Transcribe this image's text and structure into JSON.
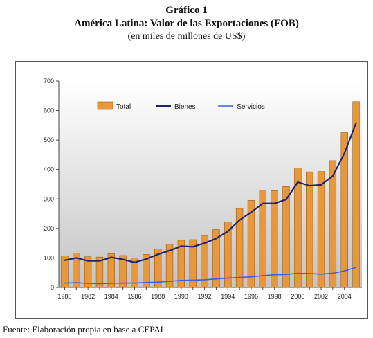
{
  "header": {
    "line1": "Gráfico 1",
    "line2": "América Latina: Valor de las Exportaciones (FOB)",
    "line3": "(en miles de millones de US$)"
  },
  "footer": {
    "source": "Fuente: Elaboración propia en base a CEPAL"
  },
  "colors": {
    "bar_fill": "#e8983c",
    "bar_stroke": "#9a5a14",
    "bienes_line": "#22226e",
    "servicios_line": "#3a5ee6",
    "plot_bg_top": "#ffffff",
    "plot_bg_bottom": "#c4c4c4"
  },
  "chart_data": {
    "type": "bar",
    "title": "",
    "xlabel": "",
    "ylabel": "",
    "ylim": [
      0,
      700
    ],
    "yticks": [
      0,
      100,
      200,
      300,
      400,
      500,
      600,
      700
    ],
    "legend_position": "top-left",
    "grid": false,
    "categories": [
      "1980",
      "1981",
      "1982",
      "1983",
      "1984",
      "1985",
      "1986",
      "1987",
      "1988",
      "1989",
      "1990",
      "1991",
      "1992",
      "1993",
      "1994",
      "1995",
      "1996",
      "1997",
      "1998",
      "1999",
      "2000",
      "2001",
      "2002",
      "2003",
      "2004",
      "2005"
    ],
    "xtick_labels": [
      "1980",
      "1982",
      "1984",
      "1986",
      "1988",
      "1990",
      "1992",
      "1994",
      "1996",
      "1998",
      "2000",
      "2002",
      "2004"
    ],
    "series": [
      {
        "name": "Total",
        "type": "bar",
        "values": [
          107,
          116,
          104,
          103,
          114,
          108,
          100,
          112,
          130,
          146,
          160,
          162,
          176,
          196,
          222,
          268,
          295,
          330,
          328,
          342,
          405,
          392,
          393,
          430,
          525,
          630
        ]
      },
      {
        "name": "Bienes",
        "type": "line",
        "values": [
          92,
          100,
          90,
          90,
          102,
          95,
          85,
          96,
          112,
          125,
          140,
          138,
          150,
          166,
          190,
          228,
          255,
          285,
          285,
          298,
          357,
          345,
          348,
          378,
          455,
          558
        ]
      },
      {
        "name": "Servicios",
        "type": "line",
        "values": [
          15,
          16,
          14,
          13,
          14,
          15,
          15,
          17,
          18,
          21,
          24,
          25,
          26,
          29,
          32,
          34,
          36,
          40,
          43,
          44,
          48,
          47,
          45,
          48,
          56,
          68
        ]
      }
    ]
  }
}
